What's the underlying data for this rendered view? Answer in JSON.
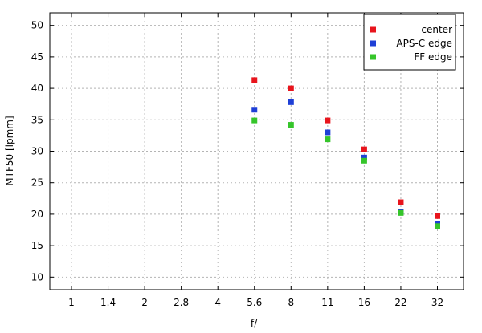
{
  "chart_data": {
    "type": "scatter",
    "title": "",
    "xlabel": "f/",
    "ylabel": "MTF50 [lpmm]",
    "categories": [
      "1",
      "1.4",
      "2",
      "2.8",
      "4",
      "5.6",
      "8",
      "11",
      "16",
      "22",
      "32"
    ],
    "ylim": [
      8,
      52
    ],
    "yticks": [
      10,
      15,
      20,
      25,
      30,
      35,
      40,
      45,
      50
    ],
    "grid": true,
    "legend_position": "top-right",
    "series": [
      {
        "name": "center",
        "color": "#e8141c",
        "values": [
          null,
          null,
          null,
          null,
          null,
          41.3,
          40.0,
          34.9,
          30.3,
          21.9,
          19.7
        ]
      },
      {
        "name": "APS-C edge",
        "color": "#1e3fd6",
        "values": [
          null,
          null,
          null,
          null,
          null,
          36.6,
          37.8,
          33.0,
          29.0,
          20.4,
          18.5
        ]
      },
      {
        "name": "FF edge",
        "color": "#35c52a",
        "values": [
          null,
          null,
          null,
          null,
          null,
          34.9,
          34.2,
          31.9,
          28.5,
          20.2,
          18.1
        ]
      }
    ]
  }
}
